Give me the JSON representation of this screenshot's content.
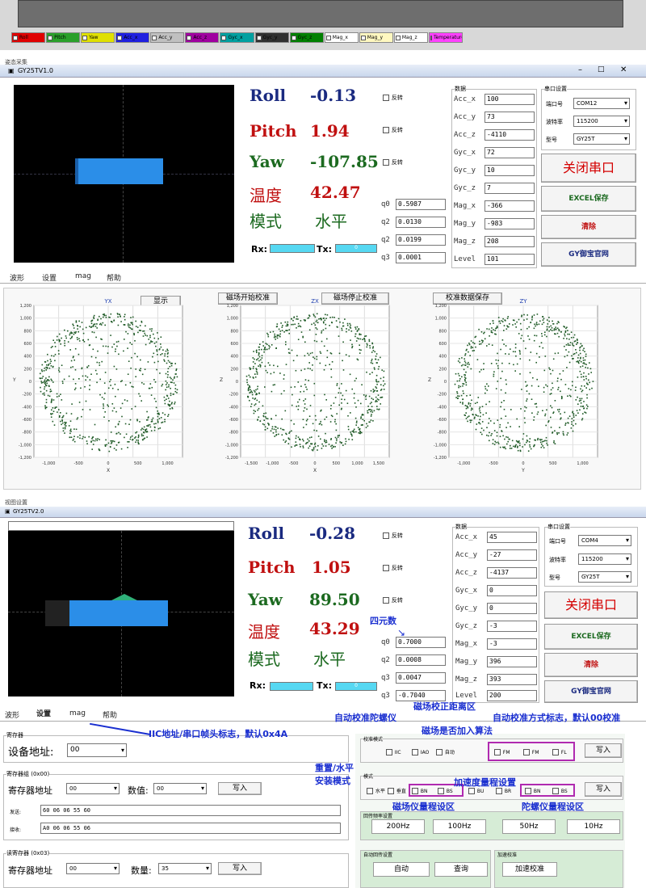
{
  "legend": [
    "Roll",
    "Pitch",
    "Yaw",
    "Acc_x",
    "Acc_y",
    "Acc_z",
    "Gyc_x",
    "Gyc_y",
    "Gyc_z",
    "Mag_x",
    "Mag_y",
    "Mag_z",
    "Temperature"
  ],
  "legend_colors": [
    "#e00000",
    "#2aa02a",
    "#e0e000",
    "#2020e0",
    "#c0c0c0",
    "#a000a0",
    "#00a0a0",
    "#303030",
    "#008000",
    "#ffffff",
    "#fff8c0",
    "#ffffff",
    "#ff40ff"
  ],
  "win1": {
    "section": "姿态采集",
    "title": "GY25TV1.0",
    "roll_l": "Roll",
    "roll": "-0.13",
    "pitch_l": "Pitch",
    "pitch": "1.94",
    "yaw_l": "Yaw",
    "yaw": "-107.85",
    "temp_l": "温度",
    "temp": "42.47",
    "mode_l": "模式",
    "mode": "水平",
    "rev": "反转",
    "q0l": "q0",
    "q0": "0.5987",
    "q2l": "q2",
    "q1": "0.0130",
    "q2": "0.0199",
    "q3l": "q3",
    "q3": "0.0001",
    "rx": "Rx:",
    "tx": "Tx:",
    "txv": "0",
    "data_title": "数据",
    "acc_x": "Acc_x",
    "acc_xv": "100",
    "acc_y": "Acc_y",
    "acc_yv": "73",
    "acc_z": "Acc_z",
    "acc_zv": "-4110",
    "gyc_x": "Gyc_x",
    "gyc_xv": "72",
    "gyc_y": "Gyc_y",
    "gyc_yv": "10",
    "gyc_z": "Gyc_z",
    "gyc_zv": "7",
    "mag_x": "Mag_x",
    "mag_xv": "-366",
    "mag_y": "Mag_y",
    "mag_yv": "-983",
    "mag_z": "Mag_z",
    "mag_zv": "208",
    "level": "Level",
    "levelv": "101",
    "port_title": "串口设置",
    "port_l": "端口号",
    "port": "COM12",
    "baud_l": "波特率",
    "baud": "115200",
    "model_l": "型号",
    "model": "GY25T",
    "close": "关闭串口",
    "excel": "EXCEL保存",
    "clear": "清除",
    "site": "GY御宝官网",
    "tabs": [
      "波形",
      "设置",
      "mag",
      "帮助"
    ],
    "show": "显示",
    "start": "磁场开始校准",
    "stop": "磁场停止校准",
    "save": "校准数据保存",
    "yx": "YX",
    "zx": "ZX",
    "zy": "ZY",
    "x_label": "X",
    "y_label": "Y",
    "z_label": "Z",
    "yticks": [
      "1,200",
      "1,000",
      "800",
      "600",
      "400",
      "200",
      "0",
      "-200",
      "-400",
      "-600",
      "-800",
      "-1,000",
      "-1,200"
    ],
    "xticks": [
      "-1,000",
      "-500",
      "0",
      "500",
      "1,000"
    ],
    "xticks2": [
      "-1,500",
      "-1,000",
      "-500",
      "0",
      "500",
      "1,000",
      "1,500"
    ]
  },
  "win2": {
    "section": "视图设置",
    "title": "GY25TV2.0",
    "roll": "-0.28",
    "pitch": "1.05",
    "yaw": "89.50",
    "temp": "43.29",
    "mode": "水平",
    "q0": "0.7000",
    "q1": "0.0008",
    "q2": "0.0047",
    "q3": "-0.7040",
    "txv": "0",
    "acc_xv": "45",
    "acc_yv": "-27",
    "acc_zv": "-4137",
    "gyc_xv": "0",
    "gyc_yv": "0",
    "gyc_zv": "-3",
    "mag_xv": "-3",
    "mag_yv": "396",
    "mag_zv": "393",
    "levelv": "200",
    "port": "COM4",
    "baud": "115200",
    "model": "GY25T",
    "tabs": [
      "波形",
      "设置",
      "mag",
      "帮助"
    ],
    "sect1": "寄存器",
    "addr_l": "设备地址:",
    "addr": "00",
    "sect2": "寄存器组 (0x00)",
    "reg_l": "寄存器地址",
    "reg": "00",
    "val_l": "数值:",
    "valv": "00",
    "write": "写入",
    "send_l": "发送:",
    "send": "60 06 06 55 60",
    "recv_l": "接收:",
    "recv": "A0 06 06 55 06",
    "sect3": "读寄存器 (0x03)",
    "reg2": "00",
    "cnt_l": "数量:",
    "cnt": "35",
    "write2": "写入",
    "calib": "校准模式",
    "opts1": [
      "IIC",
      "IAO",
      "自动"
    ],
    "opts2": [
      "FM",
      "FM",
      "FL"
    ],
    "write3": "写入",
    "mode_grp": "模式",
    "opts3": [
      "水平",
      "垂直"
    ],
    "opts4": [
      "BN",
      "BS",
      "BU",
      "BR"
    ],
    "write4": "写入",
    "freq_grp": "回传频率设置",
    "f1": "200Hz",
    "f2": "100Hz",
    "f3": "50Hz",
    "f4": "10Hz",
    "auto_grp": "自动回传设置",
    "auto": "自动",
    "query": "查询",
    "acc_grp": "加速校准",
    "acc_btn": "加速校准"
  },
  "annotations": {
    "quat": "四元数",
    "iic": "IIC地址/串口帧头标志，默认0x4A",
    "auto_cal": "自动校准陀螺仪",
    "dist": "磁场校正距离区",
    "algo": "磁场是否加入算法",
    "method": "自动校准方式标志，默认00校准",
    "reset": "重置/水平",
    "install": "安装模式",
    "acc_set": "加速度量程设置",
    "gyro_set": "磁场仪量程设区",
    "mag_range": "陀螺仪量程设区"
  }
}
